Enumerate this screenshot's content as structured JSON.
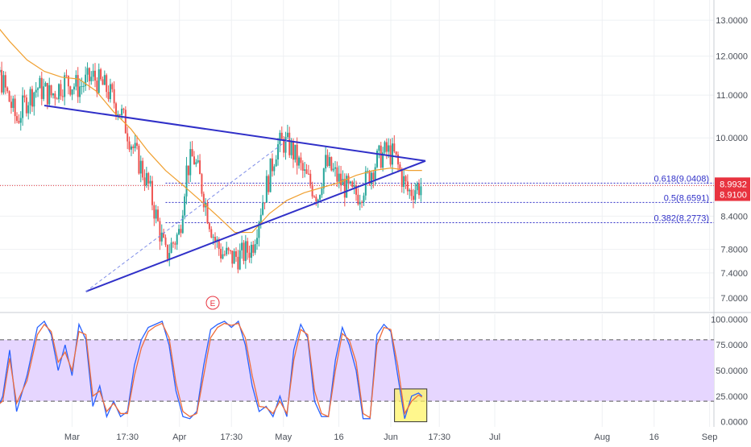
{
  "chart_data": [
    {
      "type": "candlestick",
      "title": "",
      "ylim": [
        6.8,
        13.6
      ],
      "y_ticks": [
        7.0,
        7.4,
        7.8,
        8.4,
        9.0,
        10.0,
        11.0,
        12.0,
        13.0
      ],
      "y_tick_labels": [
        "7.0000",
        "7.4000",
        "7.8000",
        "8.4000",
        "9.0000",
        "10.0000",
        "11.0000",
        "12.0000",
        "13.0000"
      ],
      "x_tick_labels": [
        {
          "label": "Mar",
          "day": 28
        },
        {
          "label": "17:30",
          "day": 44
        },
        {
          "label": "Apr",
          "day": 59
        },
        {
          "label": "17:30",
          "day": 74
        },
        {
          "label": "May",
          "day": 89
        },
        {
          "label": "16",
          "day": 105
        },
        {
          "label": "Jun",
          "day": 120
        },
        {
          "label": "17:30",
          "day": 134
        },
        {
          "label": "Jul",
          "day": 150
        },
        {
          "label": "Aug",
          "day": 181
        },
        {
          "label": "16",
          "day": 196
        },
        {
          "label": "Sep",
          "day": 212
        }
      ],
      "price_path": [
        [
          0,
          12.6
        ],
        [
          4,
          12.0
        ],
        [
          8,
          11.3
        ],
        [
          12,
          10.4
        ],
        [
          15,
          10.9
        ],
        [
          18,
          11.2
        ],
        [
          22,
          11.0
        ],
        [
          26,
          11.35
        ],
        [
          30,
          11.2
        ],
        [
          34,
          11.45
        ],
        [
          38,
          11.15
        ],
        [
          42,
          10.6
        ],
        [
          46,
          9.7
        ],
        [
          50,
          9.0
        ],
        [
          53,
          8.2
        ],
        [
          55,
          7.7
        ],
        [
          57,
          7.9
        ],
        [
          59,
          8.1
        ],
        [
          61,
          9.3
        ],
        [
          63,
          9.6
        ],
        [
          65,
          9.1
        ],
        [
          67,
          8.5
        ],
        [
          69,
          8.0
        ],
        [
          71,
          7.75
        ],
        [
          74,
          7.65
        ],
        [
          77,
          7.7
        ],
        [
          80,
          7.85
        ],
        [
          83,
          8.7
        ],
        [
          85,
          9.2
        ],
        [
          87,
          9.8
        ],
        [
          89,
          9.9
        ],
        [
          91,
          9.8
        ],
        [
          93,
          9.5
        ],
        [
          95,
          9.2
        ],
        [
          97,
          9.0
        ],
        [
          99,
          8.8
        ],
        [
          101,
          9.45
        ],
        [
          103,
          9.3
        ],
        [
          105,
          9.1
        ],
        [
          107,
          8.95
        ],
        [
          109,
          8.8
        ],
        [
          111,
          8.85
        ],
        [
          113,
          9.1
        ],
        [
          115,
          9.4
        ],
        [
          117,
          9.6
        ],
        [
          119,
          9.7
        ],
        [
          121,
          9.6
        ],
        [
          123,
          9.2
        ],
        [
          125,
          8.85
        ],
        [
          127,
          8.95
        ],
        [
          129,
          9.0
        ]
      ],
      "ma_path": [
        [
          0,
          13.5
        ],
        [
          5,
          13.0
        ],
        [
          10,
          12.4
        ],
        [
          15,
          11.9
        ],
        [
          20,
          11.6
        ],
        [
          25,
          11.45
        ],
        [
          30,
          11.4
        ],
        [
          35,
          11.1
        ],
        [
          40,
          10.6
        ],
        [
          45,
          10.2
        ],
        [
          50,
          9.7
        ],
        [
          55,
          9.3
        ],
        [
          60,
          9.0
        ],
        [
          65,
          8.7
        ],
        [
          70,
          8.4
        ],
        [
          75,
          8.1
        ],
        [
          80,
          8.1
        ],
        [
          85,
          8.45
        ],
        [
          90,
          8.7
        ],
        [
          95,
          8.85
        ],
        [
          100,
          8.95
        ],
        [
          105,
          9.05
        ],
        [
          110,
          9.2
        ],
        [
          115,
          9.3
        ],
        [
          120,
          9.35
        ],
        [
          125,
          9.3
        ],
        [
          129,
          9.3
        ]
      ],
      "triangle": {
        "upper": [
          [
            20,
            10.75
          ],
          [
            130,
            9.5
          ]
        ],
        "lower": [
          [
            32,
            7.1
          ],
          [
            130,
            9.5
          ]
        ],
        "dashed": [
          [
            32,
            7.1
          ],
          [
            91,
            10.0
          ]
        ]
      },
      "fib_levels": [
        {
          "label": "0.618(9.0408)",
          "value": 9.0408
        },
        {
          "label": "0.5(8.6591)",
          "value": 8.6591
        },
        {
          "label": "0.382(8.2773)",
          "value": 8.2773
        }
      ],
      "current_price": {
        "label": "8.9932",
        "value": 8.9932,
        "color": "#e8333f"
      },
      "secondary_price": {
        "label": "8.9100",
        "value": 8.91,
        "color": "#e8333f"
      },
      "event_marker": "E",
      "colors": {
        "up": "#26a69a",
        "down": "#ef5350",
        "ma": "#f0a030",
        "trend": "#3030c8"
      }
    },
    {
      "type": "line",
      "title": "",
      "ylim": [
        -5,
        105
      ],
      "y_ticks": [
        0,
        25,
        50,
        75,
        100
      ],
      "y_tick_labels": [
        "0.0000",
        "25.0000",
        "50.0000",
        "75.0000",
        "100.0000"
      ],
      "band": [
        20,
        80
      ],
      "series": [
        {
          "color": "#2962ff",
          "values": [
            [
              0,
              80
            ],
            [
              2,
              90
            ],
            [
              4,
              55
            ],
            [
              6,
              8
            ],
            [
              8,
              25
            ],
            [
              10,
              70
            ],
            [
              12,
              10
            ],
            [
              15,
              45
            ],
            [
              18,
              92
            ],
            [
              20,
              98
            ],
            [
              22,
              85
            ],
            [
              24,
              50
            ],
            [
              26,
              75
            ],
            [
              28,
              45
            ],
            [
              30,
              95
            ],
            [
              32,
              80
            ],
            [
              34,
              15
            ],
            [
              36,
              35
            ],
            [
              38,
              5
            ],
            [
              40,
              20
            ],
            [
              42,
              5
            ],
            [
              44,
              10
            ],
            [
              46,
              55
            ],
            [
              48,
              80
            ],
            [
              50,
              92
            ],
            [
              52,
              95
            ],
            [
              54,
              98
            ],
            [
              56,
              75
            ],
            [
              58,
              30
            ],
            [
              60,
              5
            ],
            [
              62,
              3
            ],
            [
              64,
              10
            ],
            [
              66,
              55
            ],
            [
              68,
              90
            ],
            [
              70,
              95
            ],
            [
              72,
              98
            ],
            [
              74,
              92
            ],
            [
              76,
              98
            ],
            [
              78,
              75
            ],
            [
              80,
              35
            ],
            [
              82,
              10
            ],
            [
              84,
              15
            ],
            [
              86,
              5
            ],
            [
              88,
              25
            ],
            [
              90,
              5
            ],
            [
              92,
              70
            ],
            [
              94,
              95
            ],
            [
              96,
              82
            ],
            [
              98,
              20
            ],
            [
              100,
              5
            ],
            [
              102,
              5
            ],
            [
              104,
              60
            ],
            [
              106,
              92
            ],
            [
              108,
              75
            ],
            [
              110,
              50
            ],
            [
              112,
              3
            ],
            [
              114,
              3
            ],
            [
              116,
              85
            ],
            [
              118,
              95
            ],
            [
              120,
              88
            ],
            [
              122,
              45
            ],
            [
              124,
              3
            ],
            [
              126,
              25
            ],
            [
              128,
              28
            ],
            [
              129,
              25
            ]
          ]
        },
        {
          "color": "#ef6c3a",
          "values": [
            [
              0,
              78
            ],
            [
              2,
              85
            ],
            [
              4,
              62
            ],
            [
              6,
              15
            ],
            [
              8,
              20
            ],
            [
              10,
              62
            ],
            [
              12,
              18
            ],
            [
              15,
              40
            ],
            [
              18,
              85
            ],
            [
              20,
              95
            ],
            [
              22,
              88
            ],
            [
              24,
              58
            ],
            [
              26,
              68
            ],
            [
              28,
              50
            ],
            [
              30,
              88
            ],
            [
              32,
              85
            ],
            [
              34,
              25
            ],
            [
              36,
              30
            ],
            [
              38,
              10
            ],
            [
              40,
              18
            ],
            [
              42,
              8
            ],
            [
              44,
              8
            ],
            [
              46,
              45
            ],
            [
              48,
              72
            ],
            [
              50,
              88
            ],
            [
              52,
              93
            ],
            [
              54,
              96
            ],
            [
              56,
              82
            ],
            [
              58,
              38
            ],
            [
              60,
              10
            ],
            [
              62,
              5
            ],
            [
              64,
              8
            ],
            [
              66,
              45
            ],
            [
              68,
              82
            ],
            [
              70,
              92
            ],
            [
              72,
              96
            ],
            [
              74,
              94
            ],
            [
              76,
              96
            ],
            [
              78,
              82
            ],
            [
              80,
              45
            ],
            [
              82,
              15
            ],
            [
              84,
              14
            ],
            [
              86,
              8
            ],
            [
              88,
              20
            ],
            [
              90,
              8
            ],
            [
              92,
              60
            ],
            [
              94,
              90
            ],
            [
              96,
              85
            ],
            [
              98,
              30
            ],
            [
              100,
              8
            ],
            [
              102,
              5
            ],
            [
              104,
              50
            ],
            [
              106,
              86
            ],
            [
              108,
              80
            ],
            [
              110,
              58
            ],
            [
              112,
              8
            ],
            [
              114,
              4
            ],
            [
              116,
              75
            ],
            [
              118,
              92
            ],
            [
              120,
              90
            ],
            [
              122,
              55
            ],
            [
              124,
              8
            ],
            [
              126,
              20
            ],
            [
              128,
              26
            ],
            [
              129,
              24
            ]
          ]
        }
      ],
      "highlight_box": {
        "x": [
          122,
          129
        ],
        "y": [
          0,
          32
        ]
      }
    }
  ]
}
